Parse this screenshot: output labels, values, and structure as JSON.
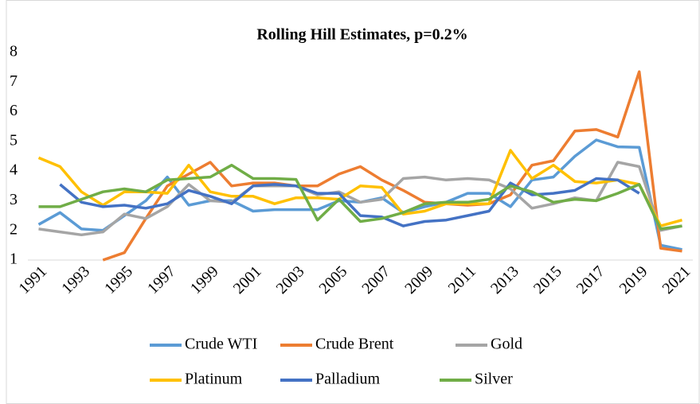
{
  "chart_data": {
    "type": "line",
    "title": "Rolling Hill Estimates, p=0.2%",
    "categories": [
      "1991",
      null,
      "1993",
      null,
      "1995",
      null,
      "1997",
      null,
      "1999",
      null,
      "2001",
      null,
      "2003",
      null,
      "2005",
      null,
      "2007",
      null,
      "2009",
      null,
      "2011",
      null,
      "2013",
      null,
      "2015",
      null,
      "2017",
      null,
      "2019",
      null,
      "2021"
    ],
    "ylim": [
      1,
      8
    ],
    "yticks": [
      1,
      2,
      3,
      4,
      5,
      6,
      7,
      8
    ],
    "grid": false,
    "legend": "bottom",
    "series": [
      {
        "name": "Crude WTI",
        "color": "#5B9BD5",
        "values": [
          2.2,
          2.6,
          2.05,
          2.0,
          2.5,
          3.0,
          3.8,
          2.85,
          3.0,
          3.0,
          2.65,
          2.7,
          2.7,
          2.7,
          3.0,
          2.95,
          3.1,
          2.6,
          2.8,
          2.95,
          3.25,
          3.25,
          2.8,
          3.7,
          3.8,
          4.5,
          5.05,
          4.82,
          4.8,
          1.5,
          1.35
        ]
      },
      {
        "name": "Crude Brent",
        "color": "#ED7D31",
        "values": [
          null,
          null,
          null,
          1.0,
          1.25,
          2.4,
          3.5,
          3.9,
          4.3,
          3.5,
          3.6,
          3.6,
          3.5,
          3.5,
          3.9,
          4.15,
          3.7,
          3.35,
          2.95,
          2.9,
          2.85,
          2.9,
          3.2,
          4.2,
          4.35,
          5.35,
          5.4,
          5.15,
          7.35,
          1.4,
          1.3
        ]
      },
      {
        "name": "Gold",
        "color": "#A5A5A5",
        "values": [
          2.05,
          1.95,
          1.85,
          1.95,
          2.55,
          2.4,
          2.8,
          3.55,
          3.0,
          2.95,
          3.5,
          3.5,
          3.5,
          3.2,
          3.3,
          2.95,
          3.05,
          3.75,
          3.8,
          3.7,
          3.75,
          3.7,
          3.4,
          2.75,
          2.9,
          3.1,
          3.0,
          4.3,
          4.15,
          2.0,
          2.15
        ]
      },
      {
        "name": "Platinum",
        "color": "#FFC000",
        "values": [
          4.45,
          4.15,
          3.3,
          2.85,
          3.3,
          3.3,
          3.25,
          4.2,
          3.3,
          3.15,
          3.15,
          2.9,
          3.1,
          3.1,
          3.05,
          3.5,
          3.45,
          2.55,
          2.65,
          2.9,
          2.9,
          2.9,
          4.7,
          3.75,
          4.2,
          3.65,
          3.6,
          3.7,
          3.55,
          2.15,
          2.35
        ]
      },
      {
        "name": "Palladium",
        "color": "#4472C4",
        "values": [
          null,
          3.55,
          2.95,
          2.8,
          2.85,
          2.75,
          2.9,
          3.35,
          3.15,
          2.9,
          3.5,
          3.55,
          3.5,
          3.25,
          3.25,
          2.5,
          2.45,
          2.15,
          2.3,
          2.35,
          2.5,
          2.65,
          3.6,
          3.2,
          3.25,
          3.35,
          3.75,
          3.7,
          3.25,
          null,
          null
        ]
      },
      {
        "name": "Silver",
        "color": "#70AD47",
        "values": [
          2.8,
          2.8,
          3.05,
          3.3,
          3.4,
          3.3,
          3.7,
          3.75,
          3.8,
          4.2,
          3.75,
          3.75,
          3.72,
          2.35,
          3.05,
          2.3,
          2.4,
          2.6,
          2.9,
          2.95,
          2.95,
          3.05,
          3.5,
          3.3,
          2.95,
          3.05,
          3.0,
          3.25,
          3.55,
          2.05,
          2.15
        ]
      }
    ]
  }
}
